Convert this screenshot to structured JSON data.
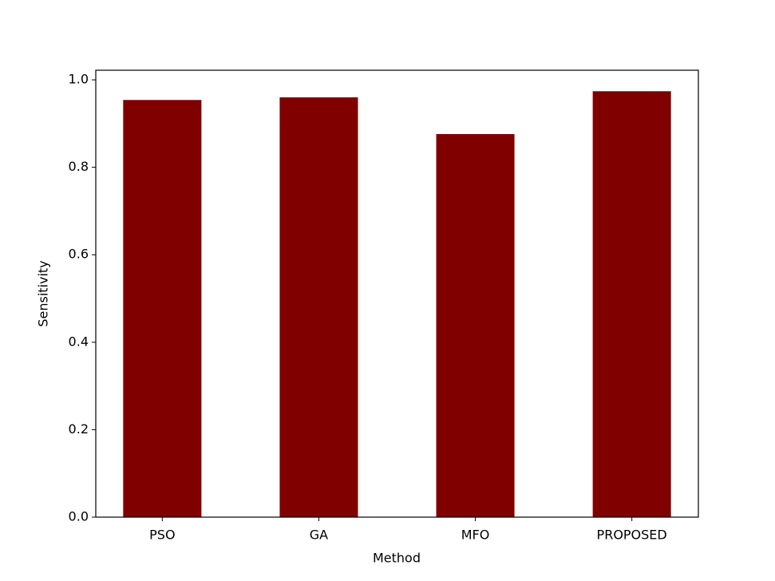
{
  "chart_data": {
    "type": "bar",
    "x_label": "Method",
    "y_label": "Sensitivity",
    "categories": [
      "PSO",
      "GA",
      "MFO",
      "PROPOSED"
    ],
    "values": [
      0.954,
      0.96,
      0.876,
      0.974
    ],
    "color": "#800000",
    "ylim": [
      0,
      1.022
    ],
    "yticks": [
      {
        "value": 0,
        "label": "0.0"
      },
      0.2,
      0.4,
      0.6,
      0.8,
      {
        "value": 1,
        "label": "1.0"
      }
    ],
    "grid": false
  }
}
